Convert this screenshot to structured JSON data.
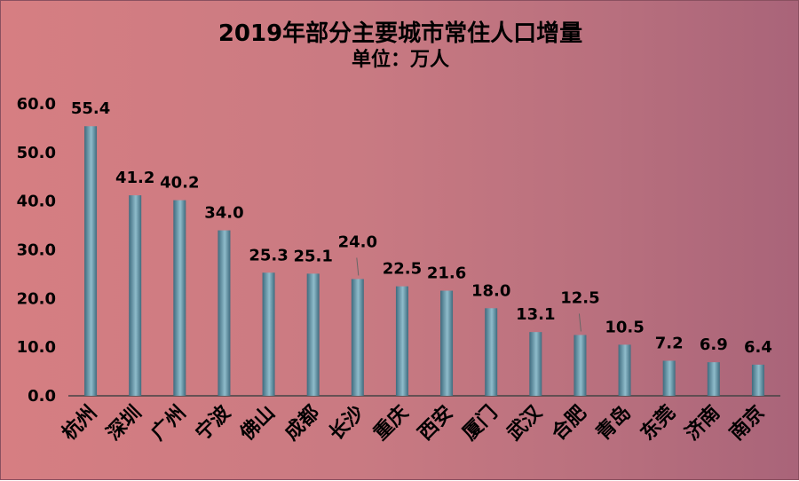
{
  "chart_data": {
    "type": "bar",
    "title": "2019年部分主要城市常住人口增量",
    "subtitle": "单位：万人",
    "categories": [
      "杭州",
      "深圳",
      "广州",
      "宁波",
      "佛山",
      "成都",
      "长沙",
      "重庆",
      "西安",
      "厦门",
      "武汉",
      "合肥",
      "青岛",
      "东莞",
      "济南",
      "南京"
    ],
    "values": [
      55.4,
      41.2,
      40.2,
      34.0,
      25.3,
      25.1,
      24.0,
      22.5,
      21.6,
      18.0,
      13.1,
      12.5,
      10.5,
      7.2,
      6.9,
      6.4
    ],
    "value_labels": [
      "55.4",
      "41.2",
      "40.2",
      "34.0",
      "25.3",
      "25.1",
      "24.0",
      "22.5",
      "21.6",
      "18.0",
      "13.1",
      "12.5",
      "10.5",
      "7.2",
      "6.9",
      "6.4"
    ],
    "ylim": [
      0,
      60
    ],
    "y_ticks": [
      0,
      10,
      20,
      30,
      40,
      50,
      60
    ],
    "y_tick_labels": [
      "0.0",
      "10.0",
      "20.0",
      "30.0",
      "40.0",
      "50.0",
      "60.0"
    ],
    "xlabel": "",
    "ylabel": "",
    "grid": false,
    "legend": "none",
    "colors": {
      "bar_dark": "#3f6b7e",
      "bar_light": "#8fbccb",
      "axis": "#444444",
      "text": "#000000"
    }
  }
}
